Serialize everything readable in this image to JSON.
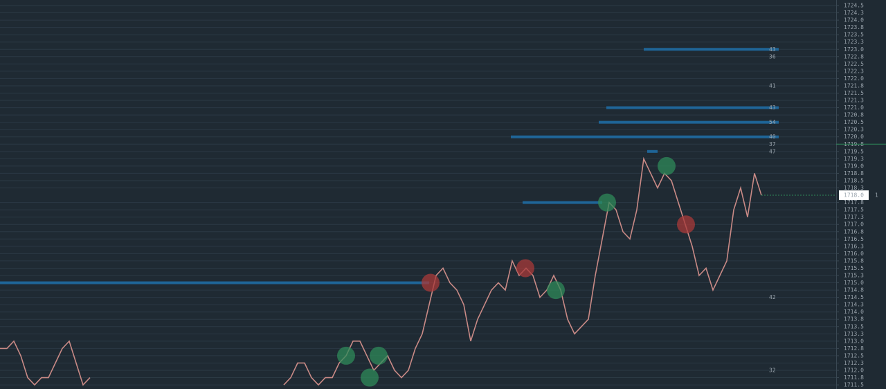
{
  "chart_data": {
    "type": "line",
    "color": "#c98a86",
    "xlim": [
      0,
      128
    ],
    "ylim": [
      1711.36,
      1724.69
    ],
    "grid": true,
    "values": [
      1712.75,
      1712.75,
      1713.0,
      1712.5,
      1711.75,
      1711.5,
      1711.75,
      1711.75,
      1712.25,
      1712.75,
      1713.0,
      1712.25,
      1711.5,
      1711.75,
      null,
      null,
      null,
      null,
      null,
      null,
      null,
      null,
      null,
      null,
      null,
      null,
      null,
      null,
      null,
      null,
      null,
      null,
      null,
      null,
      null,
      null,
      null,
      null,
      null,
      null,
      null,
      1711.5,
      1711.75,
      1712.25,
      1712.25,
      1711.75,
      1711.5,
      1711.75,
      1711.75,
      1712.25,
      1712.5,
      1713.0,
      1713.0,
      1712.5,
      1712.0,
      1712.25,
      1712.5,
      1712.0,
      1711.75,
      1712.0,
      1712.75,
      1713.25,
      1714.25,
      1715.25,
      1715.5,
      1715.0,
      1714.75,
      1714.25,
      1713.0,
      1713.75,
      1714.25,
      1714.75,
      1715.0,
      1714.75,
      1715.75,
      1715.25,
      1715.5,
      1715.25,
      1714.5,
      1714.75,
      1715.25,
      1714.75,
      1713.75,
      1713.25,
      1713.5,
      1713.75,
      1715.25,
      1716.5,
      1717.75,
      1717.5,
      1716.75,
      1716.5,
      1717.5,
      1719.25,
      1718.75,
      1718.25,
      1718.75,
      1718.5,
      1717.75,
      1717.0,
      1716.25,
      1715.25,
      1715.5,
      1714.75,
      1715.25,
      1715.75,
      1717.5,
      1718.25,
      1717.25,
      1718.75,
      1718.0
    ],
    "markers": [
      {
        "x": 50,
        "y": 1712.5,
        "color": "#2f8a5a"
      },
      {
        "x": 53.4,
        "y": 1711.75,
        "color": "#2f8a5a"
      },
      {
        "x": 54.7,
        "y": 1712.5,
        "color": "#2f8a5a"
      },
      {
        "x": 80.3,
        "y": 1714.75,
        "color": "#2f8a5a"
      },
      {
        "x": 87.7,
        "y": 1717.75,
        "color": "#2f8a5a"
      },
      {
        "x": 96.3,
        "y": 1719.0,
        "color": "#2f8a5a"
      },
      {
        "x": 62.2,
        "y": 1715.0,
        "color": "#a83a3a"
      },
      {
        "x": 75.9,
        "y": 1715.5,
        "color": "#a83a3a"
      },
      {
        "x": 99.1,
        "y": 1717.0,
        "color": "#a83a3a"
      }
    ],
    "liquidity_color": "#1f6fa8",
    "liquidity": [
      {
        "price": 1723.0,
        "start": 93,
        "end": 112.5
      },
      {
        "price": 1721.0,
        "start": 87.6,
        "end": 112.5
      },
      {
        "price": 1720.5,
        "start": 86.5,
        "end": 112.5
      },
      {
        "price": 1720.0,
        "start": 73.8,
        "end": 112.5
      },
      {
        "price": 1719.5,
        "start": 93.5,
        "end": 95
      },
      {
        "price": 1717.75,
        "start": 75.5,
        "end": 87
      },
      {
        "price": 1715.0,
        "start": 0,
        "end": 62
      }
    ],
    "levels": [
      {
        "value": 1723.0,
        "label": "43"
      },
      {
        "value": 1722.75,
        "label": "36"
      },
      {
        "value": 1721.75,
        "label": "41"
      },
      {
        "value": 1721.0,
        "label": "43"
      },
      {
        "value": 1720.5,
        "label": "54"
      },
      {
        "value": 1720.0,
        "label": "40"
      },
      {
        "value": 1719.75,
        "label": "37"
      },
      {
        "value": 1719.5,
        "label": "47"
      },
      {
        "value": 1714.5,
        "label": "42"
      },
      {
        "value": 1712.0,
        "label": "32"
      }
    ],
    "reference_price": 1719.75,
    "last_price": {
      "value": 1718.0,
      "label": "1718.0"
    },
    "last_price_note": "1",
    "yticks": [
      {
        "value": 1724.5,
        "label": "1724.5"
      },
      {
        "value": 1724.25,
        "label": "1724.3"
      },
      {
        "value": 1724.0,
        "label": "1724.0"
      },
      {
        "value": 1723.75,
        "label": "1723.8"
      },
      {
        "value": 1723.5,
        "label": "1723.5"
      },
      {
        "value": 1723.25,
        "label": "1723.3"
      },
      {
        "value": 1723.0,
        "label": "1723.0"
      },
      {
        "value": 1722.75,
        "label": "1722.8"
      },
      {
        "value": 1722.5,
        "label": "1722.5"
      },
      {
        "value": 1722.25,
        "label": "1722.3"
      },
      {
        "value": 1722.0,
        "label": "1722.0"
      },
      {
        "value": 1721.75,
        "label": "1721.8"
      },
      {
        "value": 1721.5,
        "label": "1721.5"
      },
      {
        "value": 1721.25,
        "label": "1721.3"
      },
      {
        "value": 1721.0,
        "label": "1721.0"
      },
      {
        "value": 1720.75,
        "label": "1720.8"
      },
      {
        "value": 1720.5,
        "label": "1720.5"
      },
      {
        "value": 1720.25,
        "label": "1720.3"
      },
      {
        "value": 1720.0,
        "label": "1720.0"
      },
      {
        "value": 1719.75,
        "label": "1719.8"
      },
      {
        "value": 1719.5,
        "label": "1719.5"
      },
      {
        "value": 1719.25,
        "label": "1719.3"
      },
      {
        "value": 1719.0,
        "label": "1719.0"
      },
      {
        "value": 1718.75,
        "label": "1718.8"
      },
      {
        "value": 1718.5,
        "label": "1718.5"
      },
      {
        "value": 1718.25,
        "label": "1718.3"
      },
      {
        "value": 1717.75,
        "label": "1717.8"
      },
      {
        "value": 1717.5,
        "label": "1717.5"
      },
      {
        "value": 1717.25,
        "label": "1717.3"
      },
      {
        "value": 1717.0,
        "label": "1717.0"
      },
      {
        "value": 1716.75,
        "label": "1716.8"
      },
      {
        "value": 1716.5,
        "label": "1716.5"
      },
      {
        "value": 1716.25,
        "label": "1716.3"
      },
      {
        "value": 1716.0,
        "label": "1716.0"
      },
      {
        "value": 1715.75,
        "label": "1715.8"
      },
      {
        "value": 1715.5,
        "label": "1715.5"
      },
      {
        "value": 1715.25,
        "label": "1715.3"
      },
      {
        "value": 1715.0,
        "label": "1715.0"
      },
      {
        "value": 1714.75,
        "label": "1714.8"
      },
      {
        "value": 1714.5,
        "label": "1714.5"
      },
      {
        "value": 1714.25,
        "label": "1714.3"
      },
      {
        "value": 1714.0,
        "label": "1714.0"
      },
      {
        "value": 1713.75,
        "label": "1713.8"
      },
      {
        "value": 1713.5,
        "label": "1713.5"
      },
      {
        "value": 1713.25,
        "label": "1713.3"
      },
      {
        "value": 1713.0,
        "label": "1713.0"
      },
      {
        "value": 1712.75,
        "label": "1712.8"
      },
      {
        "value": 1712.5,
        "label": "1712.5"
      },
      {
        "value": 1712.25,
        "label": "1712.3"
      },
      {
        "value": 1712.0,
        "label": "1712.0"
      },
      {
        "value": 1711.75,
        "label": "1711.8"
      },
      {
        "value": 1711.5,
        "label": "1711.5"
      }
    ]
  }
}
